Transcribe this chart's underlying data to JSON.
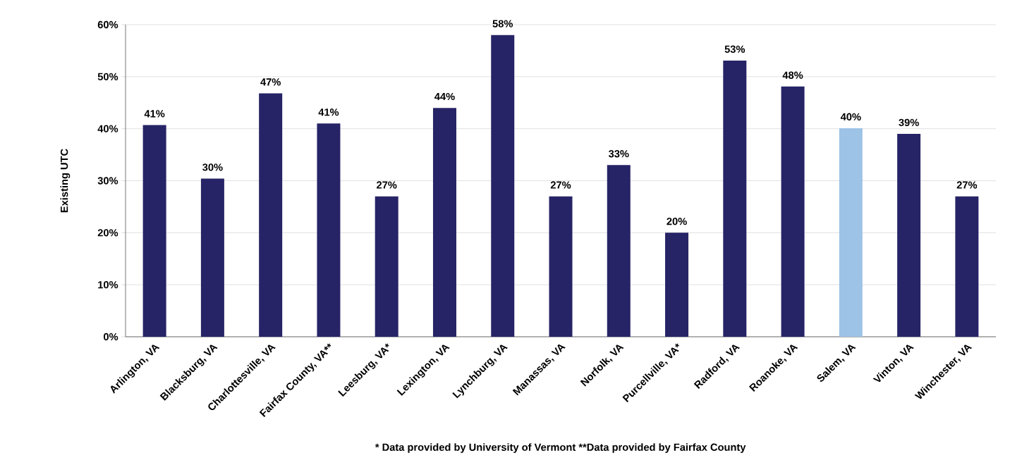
{
  "chart_data": {
    "type": "bar",
    "ylabel": "Existing UTC",
    "categories": [
      "Arlington, VA",
      "Blacksburg, VA",
      "Charlottesville, VA",
      "Fairfax County, VA**",
      "Leesburg, VA*",
      "Lexington, VA",
      "Lynchburg, VA",
      "Manassas, VA",
      "Norfolk, VA",
      "Purcellville, VA*",
      "Radford, VA",
      "Roanoke, VA",
      "Salem, VA",
      "Vinton, VA",
      "Winchester, VA"
    ],
    "values": [
      40.7,
      30.4,
      46.8,
      41,
      27,
      44,
      58,
      27,
      33,
      20,
      53.1,
      48.1,
      40.1,
      39,
      27
    ],
    "value_labels": [
      "41%",
      "30%",
      "47%",
      "41%",
      "27%",
      "44%",
      "58%",
      "27%",
      "33%",
      "20%",
      "53%",
      "48%",
      "40%",
      "39%",
      "27%"
    ],
    "colors": [
      "#262466",
      "#262466",
      "#262466",
      "#262466",
      "#262466",
      "#262466",
      "#262466",
      "#262466",
      "#262466",
      "#262466",
      "#262466",
      "#262466",
      "#9dc3e6",
      "#262466",
      "#262466"
    ],
    "ylim": [
      0,
      60
    ],
    "yticks": [
      {
        "value": 0,
        "label": "0%"
      },
      {
        "value": 10,
        "label": "10%"
      },
      {
        "value": 20,
        "label": "20%"
      },
      {
        "value": 30,
        "label": "30%"
      },
      {
        "value": 40,
        "label": "40%"
      },
      {
        "value": 50,
        "label": "50%"
      },
      {
        "value": 60,
        "label": "60%"
      }
    ],
    "grid": "y",
    "annotations": [
      "* Data provided by University of Vermont   **Data provided by Fairfax County"
    ]
  }
}
